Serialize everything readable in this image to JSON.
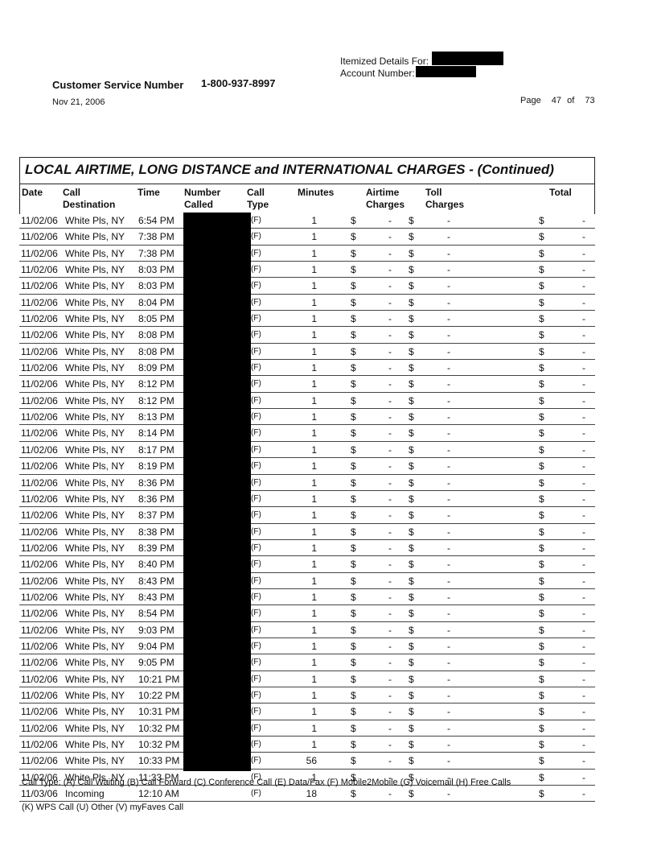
{
  "header": {
    "itemized_label": "Itemized Details For:",
    "account_label": "Account Number:",
    "csn_label": "Customer Service Number",
    "csn_value": "1-800-937-8997",
    "date": "Nov 21, 2006",
    "page_label": "Page",
    "page_current": "47",
    "page_of": "of",
    "page_total": "73"
  },
  "table": {
    "title": "LOCAL AIRTIME, LONG DISTANCE and INTERNATIONAL CHARGES  - (Continued)",
    "columns": [
      "Date",
      "Call\nDestination",
      "Time",
      "Number\nCalled",
      "Call\nType",
      "Minutes",
      "Airtime\nCharges",
      "Toll\nCharges",
      "Total"
    ],
    "rows": [
      [
        "11/02/06",
        "White Pls, NY",
        "6:54 PM",
        "(F)",
        "1"
      ],
      [
        "11/02/06",
        "White Pls, NY",
        "7:38 PM",
        "(F)",
        "1"
      ],
      [
        "11/02/06",
        "White Pls, NY",
        "7:38 PM",
        "(F)",
        "1"
      ],
      [
        "11/02/06",
        "White Pls, NY",
        "8:03 PM",
        "(F)",
        "1"
      ],
      [
        "11/02/06",
        "White Pls, NY",
        "8:03 PM",
        "(F)",
        "1"
      ],
      [
        "11/02/06",
        "White Pls, NY",
        "8:04 PM",
        "(F)",
        "1"
      ],
      [
        "11/02/06",
        "White Pls, NY",
        "8:05 PM",
        "(F)",
        "1"
      ],
      [
        "11/02/06",
        "White Pls, NY",
        "8:08 PM",
        "(F)",
        "1"
      ],
      [
        "11/02/06",
        "White Pls, NY",
        "8:08 PM",
        "(F)",
        "1"
      ],
      [
        "11/02/06",
        "White Pls, NY",
        "8:09 PM",
        "(F)",
        "1"
      ],
      [
        "11/02/06",
        "White Pls, NY",
        "8:12 PM",
        "(F)",
        "1"
      ],
      [
        "11/02/06",
        "White Pls, NY",
        "8:12 PM",
        "(F)",
        "1"
      ],
      [
        "11/02/06",
        "White Pls, NY",
        "8:13 PM",
        "(F)",
        "1"
      ],
      [
        "11/02/06",
        "White Pls, NY",
        "8:14 PM",
        "(F)",
        "1"
      ],
      [
        "11/02/06",
        "White Pls, NY",
        "8:17 PM",
        "(F)",
        "1"
      ],
      [
        "11/02/06",
        "White Pls, NY",
        "8:19 PM",
        "(F)",
        "1"
      ],
      [
        "11/02/06",
        "White Pls, NY",
        "8:36 PM",
        "(F)",
        "1"
      ],
      [
        "11/02/06",
        "White Pls, NY",
        "8:36 PM",
        "(F)",
        "1"
      ],
      [
        "11/02/06",
        "White Pls, NY",
        "8:37 PM",
        "(F)",
        "1"
      ],
      [
        "11/02/06",
        "White Pls, NY",
        "8:38 PM",
        "(F)",
        "1"
      ],
      [
        "11/02/06",
        "White Pls, NY",
        "8:39 PM",
        "(F)",
        "1"
      ],
      [
        "11/02/06",
        "White Pls, NY",
        "8:40 PM",
        "(F)",
        "1"
      ],
      [
        "11/02/06",
        "White Pls, NY",
        "8:43 PM",
        "(F)",
        "1"
      ],
      [
        "11/02/06",
        "White Pls, NY",
        "8:43 PM",
        "(F)",
        "1"
      ],
      [
        "11/02/06",
        "White Pls, NY",
        "8:54 PM",
        "(F)",
        "1"
      ],
      [
        "11/02/06",
        "White Pls, NY",
        "9:03 PM",
        "(F)",
        "1"
      ],
      [
        "11/02/06",
        "White Pls, NY",
        "9:04 PM",
        "(F)",
        "1"
      ],
      [
        "11/02/06",
        "White Pls, NY",
        "9:05 PM",
        "(F)",
        "1"
      ],
      [
        "11/02/06",
        "White Pls, NY",
        "10:21 PM",
        "(F)",
        "1"
      ],
      [
        "11/02/06",
        "White Pls, NY",
        "10:22 PM",
        "(F)",
        "1"
      ],
      [
        "11/02/06",
        "White Pls, NY",
        "10:31 PM",
        "(F)",
        "1"
      ],
      [
        "11/02/06",
        "White Pls, NY",
        "10:32 PM",
        "(F)",
        "1"
      ],
      [
        "11/02/06",
        "White Pls, NY",
        "10:32 PM",
        "(F)",
        "1"
      ],
      [
        "11/02/06",
        "White Pls, NY",
        "10:33 PM",
        "(F)",
        "56"
      ],
      [
        "11/02/06",
        "White Pls, NY",
        "11:33 PM",
        "(F)",
        "1"
      ],
      [
        "11/03/06",
        "Incoming",
        "12:10 AM",
        "(F)",
        "18"
      ]
    ],
    "currency": "$",
    "dash": "-"
  },
  "footer": {
    "legend_line1": "Call Type: (A) Call Waiting (B) Call Forward (C) Conference Call (E) Data/Fax (F) Mobile2Mobile (G) Voicemail (H) Free Calls",
    "legend_line2": "(K) WPS Call (U) Other (V) myFaves Call"
  }
}
